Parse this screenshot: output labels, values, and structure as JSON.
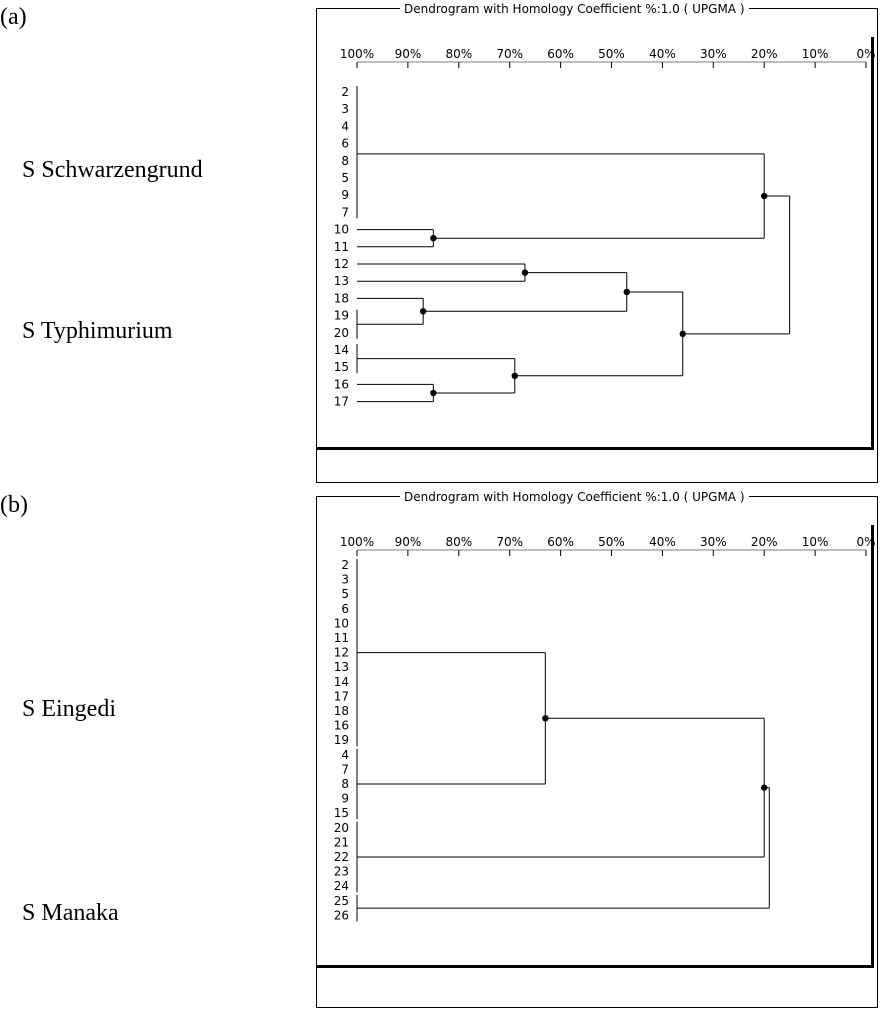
{
  "panels": [
    {
      "label": "(a)",
      "title": "Dendrogram with Homology Coefficient %:1.0 ( UPGMA )",
      "axis_ticks": [
        "100%",
        "90%",
        "80%",
        "70%",
        "60%",
        "50%",
        "40%",
        "30%",
        "20%",
        "10%",
        "0%"
      ],
      "axis_values": [
        100,
        90,
        80,
        70,
        60,
        50,
        40,
        30,
        20,
        10,
        0
      ],
      "leaves": [
        "2",
        "3",
        "4",
        "6",
        "8",
        "5",
        "9",
        "7",
        "10",
        "11",
        "12",
        "13",
        "18",
        "19",
        "20",
        "14",
        "15",
        "16",
        "17"
      ],
      "groups": [
        {
          "label": "S Schwarzengrund"
        },
        {
          "label": "S Typhimurium"
        }
      ]
    },
    {
      "label": "(b)",
      "title": "Dendrogram with Homology Coefficient %:1.0 ( UPGMA )",
      "axis_ticks": [
        "100%",
        "90%",
        "80%",
        "70%",
        "60%",
        "50%",
        "40%",
        "30%",
        "20%",
        "10%",
        "0%"
      ],
      "axis_values": [
        100,
        90,
        80,
        70,
        60,
        50,
        40,
        30,
        20,
        10,
        0
      ],
      "leaves": [
        "2",
        "3",
        "5",
        "6",
        "10",
        "11",
        "12",
        "13",
        "14",
        "17",
        "18",
        "16",
        "19",
        "4",
        "7",
        "8",
        "9",
        "15",
        "20",
        "21",
        "22",
        "23",
        "24",
        "25",
        "26"
      ],
      "groups": [
        {
          "label": "S Eingedi"
        },
        {
          "label": "S Manaka"
        }
      ]
    }
  ],
  "chart_data": [
    {
      "type": "dendrogram",
      "title": "Dendrogram with Homology Coefficient %:1.0 ( UPGMA )",
      "axis": "Homology coefficient (%)",
      "xlim": [
        100,
        0
      ],
      "merges": [
        {
          "members": [
            "2",
            "3",
            "4",
            "6",
            "8",
            "5",
            "9",
            "7"
          ],
          "similarity": 100
        },
        {
          "members": [
            "10",
            "11"
          ],
          "similarity": 85
        },
        {
          "members": [
            "2-7 cluster",
            "10-11 cluster"
          ],
          "similarity": 20
        },
        {
          "members": [
            "12",
            "13"
          ],
          "similarity": 67
        },
        {
          "members": [
            "18",
            "19",
            "20"
          ],
          "similarity": 87
        },
        {
          "members": [
            "12-13 cluster",
            "18-20 cluster"
          ],
          "similarity": 47
        },
        {
          "members": [
            "14",
            "15"
          ],
          "similarity": 100
        },
        {
          "members": [
            "16",
            "17"
          ],
          "similarity": 85
        },
        {
          "members": [
            "14-15 cluster",
            "16-17 cluster"
          ],
          "similarity": 69
        },
        {
          "members": [
            "12-20 cluster",
            "14-17 cluster"
          ],
          "similarity": 36
        },
        {
          "members": [
            "Schwarzengrund cluster",
            "Typhimurium cluster"
          ],
          "similarity": 15
        }
      ]
    },
    {
      "type": "dendrogram",
      "title": "Dendrogram with Homology Coefficient %:1.0 ( UPGMA )",
      "axis": "Homology coefficient (%)",
      "xlim": [
        100,
        0
      ],
      "merges": [
        {
          "members": [
            "2",
            "3",
            "5",
            "6",
            "10",
            "11",
            "12",
            "13",
            "14",
            "17",
            "18",
            "16",
            "19"
          ],
          "similarity": 100
        },
        {
          "members": [
            "4",
            "7",
            "8",
            "9",
            "15"
          ],
          "similarity": 100
        },
        {
          "members": [
            "Eingedi group 1",
            "Eingedi group 2"
          ],
          "similarity": 63
        },
        {
          "members": [
            "20",
            "21",
            "22",
            "23",
            "24"
          ],
          "similarity": 100
        },
        {
          "members": [
            "25",
            "26"
          ],
          "similarity": 100
        },
        {
          "members": [
            "Eingedi cluster",
            "20-24 cluster"
          ],
          "similarity": 20
        },
        {
          "members": [
            "main cluster",
            "25-26 cluster"
          ],
          "similarity": 19
        }
      ]
    }
  ]
}
